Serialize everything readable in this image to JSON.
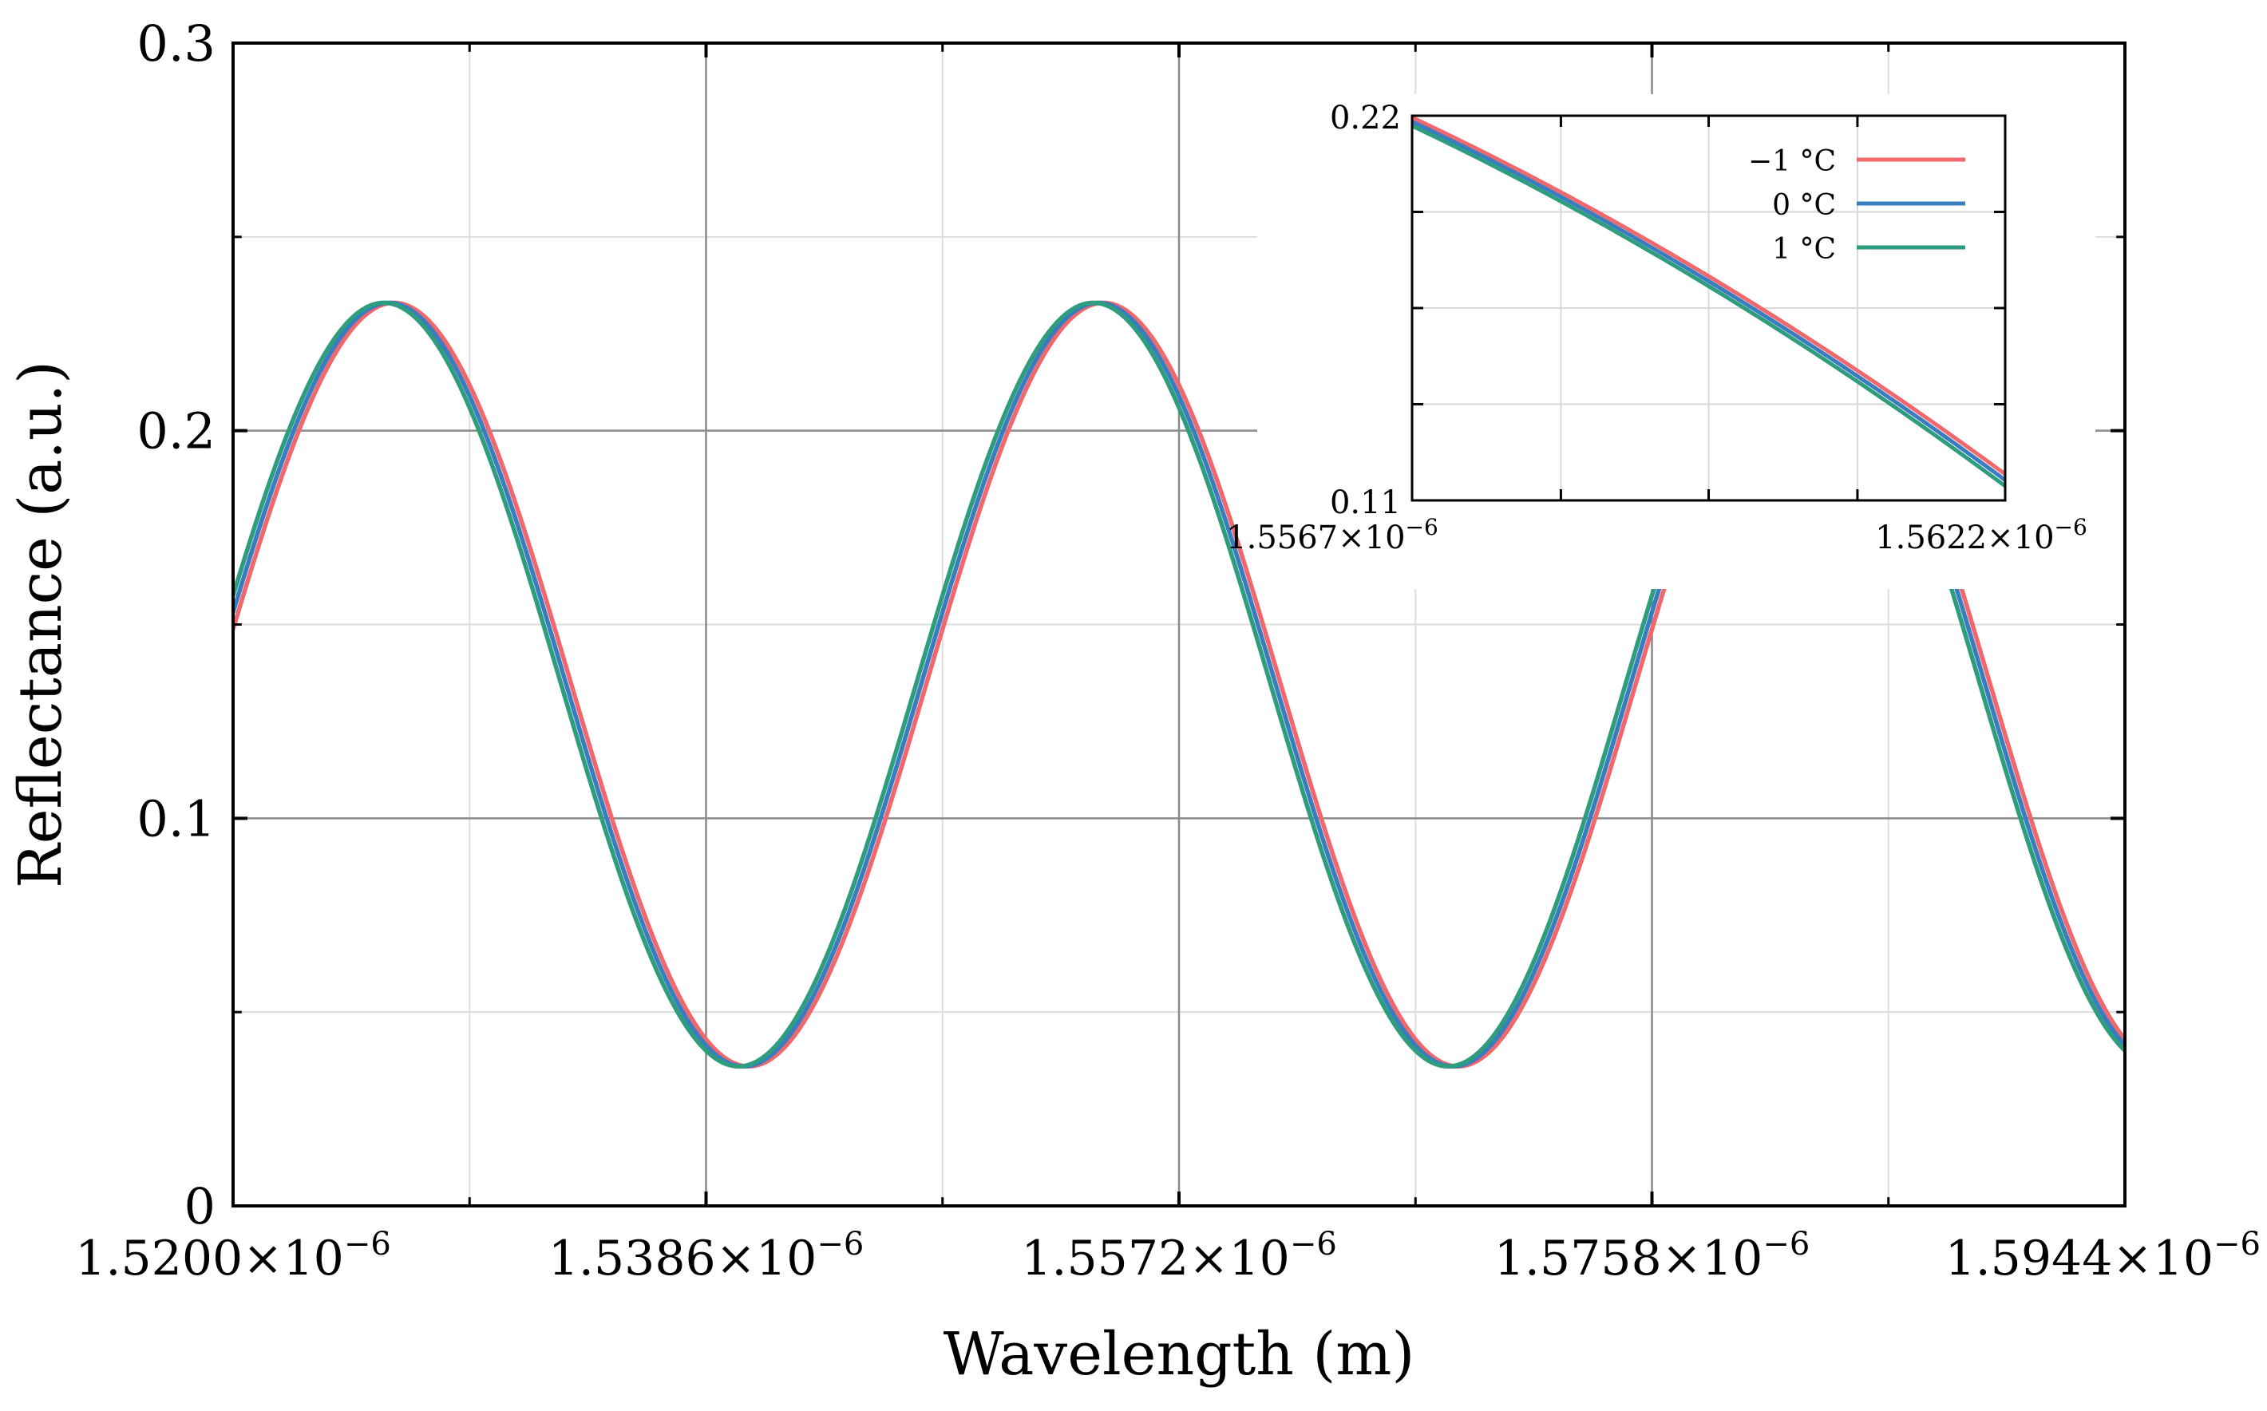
{
  "chart_data": [
    {
      "id": "main",
      "type": "line",
      "title": "",
      "xlabel": "Wavelength (m)",
      "ylabel": "Reflectance (a.u.)",
      "xlim": [
        1.52e-06,
        1.5944e-06
      ],
      "ylim": [
        0,
        0.3
      ],
      "x_ticks": [
        {
          "value": 1.52e-06,
          "mantissa": "1.5200",
          "times": "×",
          "base": "10",
          "exp": "−6"
        },
        {
          "value": 1.5386e-06,
          "mantissa": "1.5386",
          "times": "×",
          "base": "10",
          "exp": "−6"
        },
        {
          "value": 1.5572e-06,
          "mantissa": "1.5572",
          "times": "×",
          "base": "10",
          "exp": "−6"
        },
        {
          "value": 1.5758e-06,
          "mantissa": "1.5758",
          "times": "×",
          "base": "10",
          "exp": "−6"
        },
        {
          "value": 1.5944e-06,
          "mantissa": "1.5944",
          "times": "×",
          "base": "10",
          "exp": "−6"
        }
      ],
      "y_ticks": [
        {
          "value": 0,
          "label": "0"
        },
        {
          "value": 0.1,
          "label": "0.1"
        },
        {
          "value": 0.2,
          "label": "0.2"
        },
        {
          "value": 0.3,
          "label": "0.3"
        }
      ],
      "minor_x_ticks": [
        1.5293e-06,
        1.5479e-06,
        1.5665e-06,
        1.5851e-06
      ],
      "minor_y_ticks": [
        0.05,
        0.15,
        0.25
      ],
      "grid": true,
      "model": {
        "description": "two-beam interference fringe",
        "mean": 0.1345,
        "amplitude": 0.0985,
        "peak_wavelength": 1.52613e-06,
        "period": 2.79e-08
      },
      "series": [
        {
          "name": "−1 °C",
          "color": "#f0686c",
          "shift": 2e-10
        },
        {
          "name": "0 °C",
          "color": "#3a7cc0",
          "shift": 0
        },
        {
          "name": "1 °C",
          "color": "#2e9c7e",
          "shift": -2e-10
        }
      ]
    },
    {
      "id": "inset",
      "type": "line",
      "xlim": [
        1.5567e-06,
        1.5622e-06
      ],
      "ylim": [
        0.11,
        0.22
      ],
      "x_tick_labels": [
        {
          "value": 1.5567e-06,
          "mantissa": "1.5567",
          "times": "×",
          "base": "10",
          "exp": "−6"
        },
        {
          "value": 1.5622e-06,
          "mantissa": "1.5622",
          "times": "×",
          "base": "10",
          "exp": "−6"
        }
      ],
      "y_tick_labels": [
        {
          "value": 0.22,
          "label": "0.22"
        },
        {
          "value": 0.11,
          "label": "0.11"
        }
      ],
      "minor_x_ticks": [
        1.55808e-06,
        1.55945e-06,
        1.56083e-06
      ],
      "minor_y_ticks": [
        0.1375,
        0.165,
        0.1925
      ],
      "grid": true,
      "legend_position": "top-right",
      "series": [
        {
          "name": "−1 °C",
          "color": "#f0686c",
          "y_start": 0.2195,
          "y_end": 0.1175
        },
        {
          "name": "0 °C",
          "color": "#3a7cc0",
          "y_start": 0.2183,
          "y_end": 0.1158
        },
        {
          "name": "1 °C",
          "color": "#2e9c7e",
          "y_start": 0.2171,
          "y_end": 0.1141
        }
      ]
    }
  ]
}
